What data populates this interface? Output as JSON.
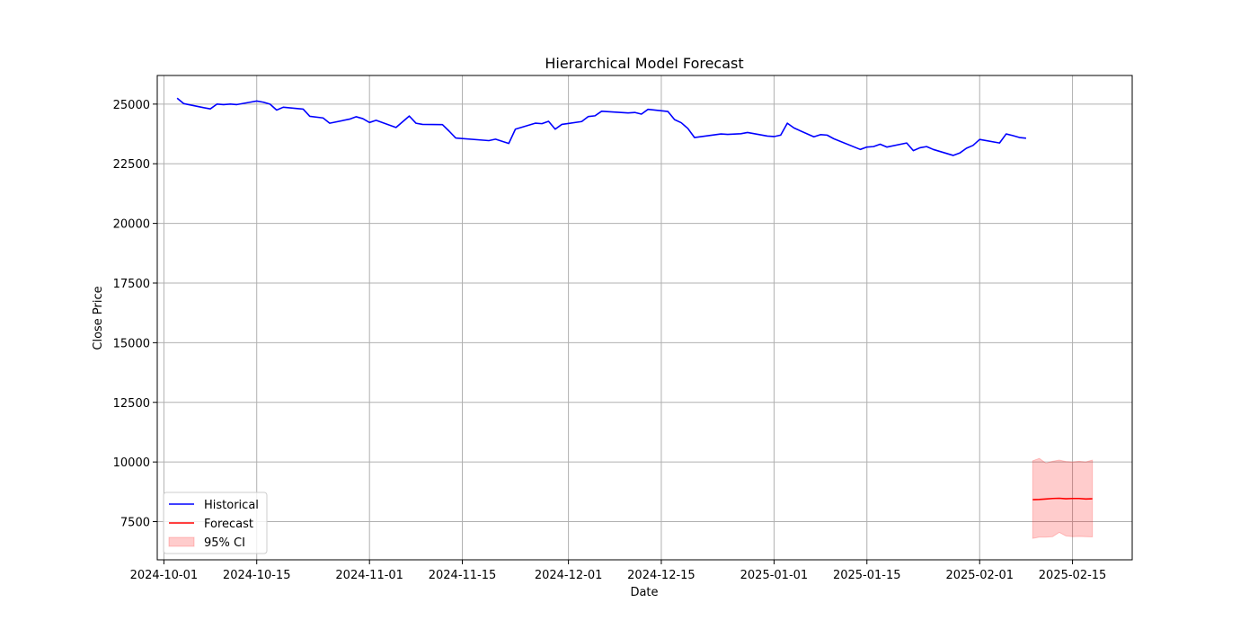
{
  "chart_data": {
    "type": "line",
    "title": "Hierarchical Model Forecast",
    "xlabel": "Date",
    "ylabel": "Close Price",
    "x_axis": {
      "type": "date",
      "range": [
        "2024-09-30",
        "2025-02-24"
      ],
      "ticks": [
        "2024-10-01",
        "2024-10-15",
        "2024-11-01",
        "2024-11-15",
        "2024-12-01",
        "2024-12-15",
        "2025-01-01",
        "2025-01-15",
        "2025-02-01",
        "2025-02-15"
      ]
    },
    "y_axis": {
      "range": [
        5900,
        26200
      ],
      "ticks": [
        7500,
        10000,
        12500,
        15000,
        17500,
        20000,
        22500,
        25000
      ]
    },
    "grid": true,
    "legend": {
      "placement": "lower-left",
      "entries": [
        {
          "label": "Historical",
          "kind": "line",
          "color": "#0000ff"
        },
        {
          "label": "Forecast",
          "kind": "line",
          "color": "#ff0000"
        },
        {
          "label": "95% CI",
          "kind": "band",
          "color": "#ff0000"
        }
      ]
    },
    "series": [
      {
        "name": "Historical",
        "color": "#0000ff",
        "points": [
          [
            "2024-10-03",
            25250
          ],
          [
            "2024-10-04",
            25020
          ],
          [
            "2024-10-07",
            24850
          ],
          [
            "2024-10-08",
            24800
          ],
          [
            "2024-10-09",
            25000
          ],
          [
            "2024-10-10",
            24980
          ],
          [
            "2024-10-11",
            25000
          ],
          [
            "2024-10-12",
            24980
          ],
          [
            "2024-10-14",
            25080
          ],
          [
            "2024-10-15",
            25130
          ],
          [
            "2024-10-16",
            25080
          ],
          [
            "2024-10-17",
            25000
          ],
          [
            "2024-10-18",
            24750
          ],
          [
            "2024-10-19",
            24870
          ],
          [
            "2024-10-22",
            24790
          ],
          [
            "2024-10-23",
            24490
          ],
          [
            "2024-10-25",
            24420
          ],
          [
            "2024-10-26",
            24200
          ],
          [
            "2024-10-29",
            24370
          ],
          [
            "2024-10-30",
            24470
          ],
          [
            "2024-10-31",
            24390
          ],
          [
            "2024-11-01",
            24230
          ],
          [
            "2024-11-02",
            24320
          ],
          [
            "2024-11-05",
            24020
          ],
          [
            "2024-11-07",
            24500
          ],
          [
            "2024-11-08",
            24200
          ],
          [
            "2024-11-09",
            24150
          ],
          [
            "2024-11-12",
            24140
          ],
          [
            "2024-11-13",
            23870
          ],
          [
            "2024-11-14",
            23580
          ],
          [
            "2024-11-19",
            23470
          ],
          [
            "2024-11-20",
            23530
          ],
          [
            "2024-11-22",
            23350
          ],
          [
            "2024-11-23",
            23950
          ],
          [
            "2024-11-26",
            24200
          ],
          [
            "2024-11-27",
            24180
          ],
          [
            "2024-11-28",
            24280
          ],
          [
            "2024-11-29",
            23950
          ],
          [
            "2024-11-30",
            24150
          ],
          [
            "2024-12-03",
            24270
          ],
          [
            "2024-12-04",
            24480
          ],
          [
            "2024-12-05",
            24510
          ],
          [
            "2024-12-06",
            24700
          ],
          [
            "2024-12-10",
            24630
          ],
          [
            "2024-12-11",
            24650
          ],
          [
            "2024-12-12",
            24580
          ],
          [
            "2024-12-13",
            24780
          ],
          [
            "2024-12-16",
            24690
          ],
          [
            "2024-12-17",
            24350
          ],
          [
            "2024-12-18",
            24220
          ],
          [
            "2024-12-19",
            23980
          ],
          [
            "2024-12-20",
            23600
          ],
          [
            "2024-12-24",
            23750
          ],
          [
            "2024-12-25",
            23730
          ],
          [
            "2024-12-27",
            23760
          ],
          [
            "2024-12-28",
            23810
          ],
          [
            "2024-12-31",
            23660
          ],
          [
            "2025-01-01",
            23640
          ],
          [
            "2025-01-02",
            23700
          ],
          [
            "2025-01-03",
            24200
          ],
          [
            "2025-01-04",
            24000
          ],
          [
            "2025-01-07",
            23630
          ],
          [
            "2025-01-08",
            23720
          ],
          [
            "2025-01-09",
            23700
          ],
          [
            "2025-01-10",
            23550
          ],
          [
            "2025-01-14",
            23100
          ],
          [
            "2025-01-15",
            23200
          ],
          [
            "2025-01-16",
            23220
          ],
          [
            "2025-01-17",
            23320
          ],
          [
            "2025-01-18",
            23200
          ],
          [
            "2025-01-21",
            23370
          ],
          [
            "2025-01-22",
            23050
          ],
          [
            "2025-01-23",
            23170
          ],
          [
            "2025-01-24",
            23220
          ],
          [
            "2025-01-25",
            23100
          ],
          [
            "2025-01-28",
            22850
          ],
          [
            "2025-01-29",
            22950
          ],
          [
            "2025-01-30",
            23150
          ],
          [
            "2025-01-31",
            23270
          ],
          [
            "2025-02-01",
            23520
          ],
          [
            "2025-02-04",
            23370
          ],
          [
            "2025-02-05",
            23750
          ],
          [
            "2025-02-06",
            23680
          ],
          [
            "2025-02-07",
            23600
          ],
          [
            "2025-02-08",
            23570
          ]
        ]
      },
      {
        "name": "Forecast",
        "color": "#ff0000",
        "points": [
          [
            "2025-02-09",
            8420
          ],
          [
            "2025-02-10",
            8430
          ],
          [
            "2025-02-11",
            8450
          ],
          [
            "2025-02-12",
            8470
          ],
          [
            "2025-02-13",
            8480
          ],
          [
            "2025-02-14",
            8460
          ],
          [
            "2025-02-15",
            8470
          ],
          [
            "2025-02-16",
            8470
          ],
          [
            "2025-02-17",
            8450
          ],
          [
            "2025-02-18",
            8460
          ]
        ],
        "ci_lower": [
          6800,
          6850,
          6850,
          6870,
          7050,
          6900,
          6870,
          6880,
          6870,
          6860
        ],
        "ci_upper": [
          10050,
          10150,
          9950,
          10030,
          10080,
          10020,
          10000,
          10030,
          10000,
          10080
        ]
      }
    ]
  }
}
